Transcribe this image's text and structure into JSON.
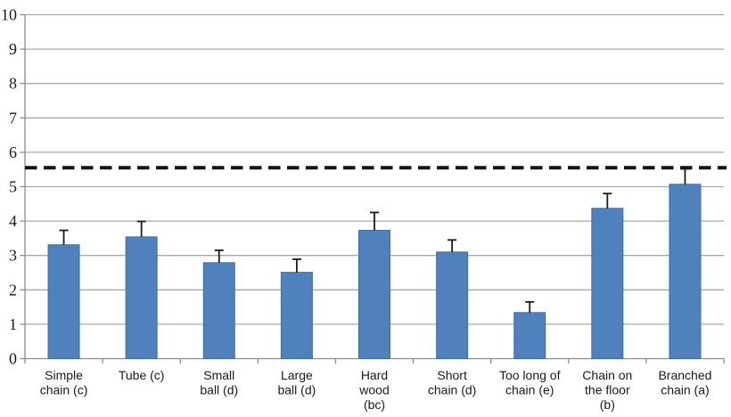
{
  "chart_data": {
    "type": "bar",
    "title": "",
    "xlabel": "",
    "ylabel": "",
    "ylim": [
      0,
      10
    ],
    "ytick_step": 1,
    "grid": true,
    "legend": "none",
    "categories": [
      "Simple chain (c)",
      "Tube (c)",
      "Small ball (d)",
      "Large ball (d)",
      "Hard wood (bc)",
      "Short chain (d)",
      "Too long of chain (e)",
      "Chain on the floor (b)",
      "Branched chain (a)"
    ],
    "category_label_lines": [
      [
        "Simple",
        "chain (c)"
      ],
      [
        "Tube (c)"
      ],
      [
        "Small",
        "ball (d)"
      ],
      [
        "Large",
        "ball (d)"
      ],
      [
        "Hard",
        "wood",
        "(bc)"
      ],
      [
        "Short",
        "chain (d)"
      ],
      [
        "Too long of",
        "chain (e)"
      ],
      [
        "Chain on",
        "the floor",
        "(b)"
      ],
      [
        "Branched",
        "chain (a)"
      ]
    ],
    "values": [
      3.31,
      3.54,
      2.79,
      2.51,
      3.73,
      3.1,
      1.34,
      4.37,
      5.07
    ],
    "errors_plus": [
      0.42,
      0.45,
      0.36,
      0.38,
      0.52,
      0.35,
      0.31,
      0.43,
      0.45
    ],
    "reference_line": {
      "value": 5.55,
      "style": "dashed",
      "color": "#141414"
    },
    "colors": {
      "bar_fill": "#4f81bd",
      "bar_edge": "#3f6da4",
      "gridline": "#a9a9a9",
      "axis": "#8c8c8c",
      "error_bar": "#1a1a1a",
      "tick_label": "#1a1a1a"
    },
    "yticks": [
      0,
      1,
      2,
      3,
      4,
      5,
      6,
      7,
      8,
      9,
      10
    ]
  }
}
